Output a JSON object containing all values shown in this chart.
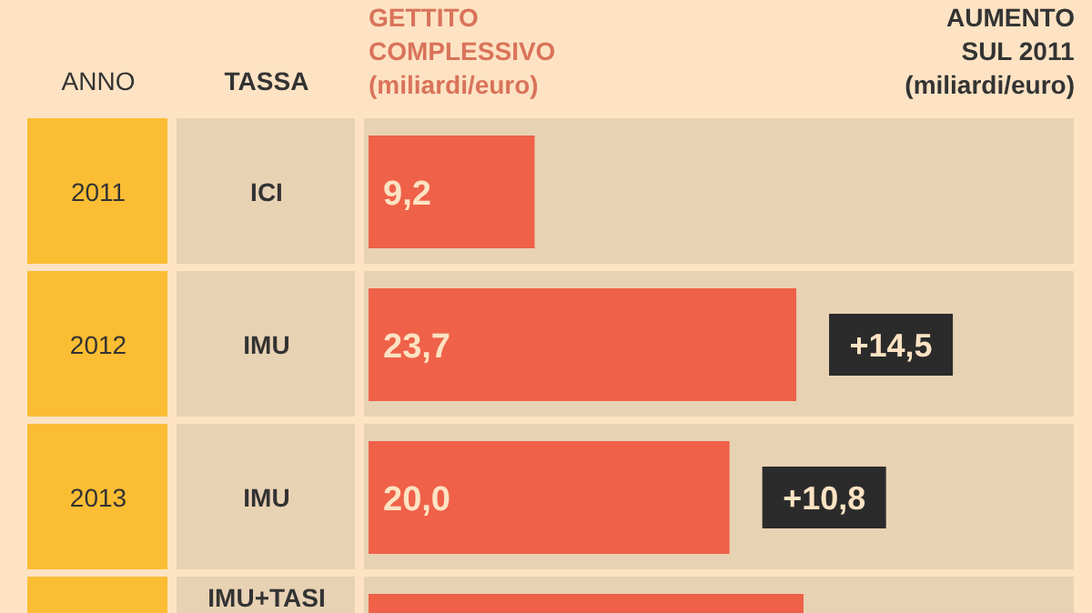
{
  "chart_data": {
    "type": "bar",
    "orientation": "horizontal",
    "categories": [
      "2011",
      "2012",
      "2013",
      null
    ],
    "values": [
      9.2,
      23.7,
      20.0,
      24.1
    ],
    "value_labels": [
      "9,2",
      "23,7",
      "20,0",
      null
    ],
    "color": "#ef6149",
    "ylabel": "ANNO",
    "xlabel": "GETTITO\nCOMPLESSIVO\n(miliardi/euro)",
    "annotations": [
      "TASSA",
      "AUMENTO\nSUL 2011\n(miliardi/euro)",
      "ICI",
      "IMU",
      "IMU",
      "IMU+TASI",
      {
        "text": "+14,5",
        "x": 23.7,
        "y": "2012"
      },
      {
        "text": "+10,8",
        "x": 20.0,
        "y": "2013"
      }
    ]
  }
}
